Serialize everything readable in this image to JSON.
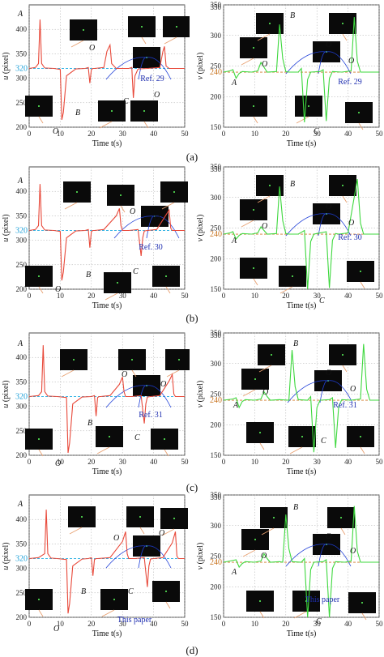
{
  "captions": [
    "(a)",
    "(b)",
    "(c)",
    "(d)"
  ],
  "colors": {
    "u_curve": "#e8493a",
    "v_curve": "#3ed83e",
    "u_ref": "#1aa9e0",
    "v_ref": "#d07a2a",
    "arrow_blue": "#1f3fd8",
    "arrow_orange": "#e8a070",
    "text_blue": "#1f2fb0"
  },
  "chart_data": [
    {
      "type": "line",
      "panel": "a-left",
      "xlabel": "Time t(s)",
      "ylabel": "u (pixel)",
      "xlim": [
        0,
        50
      ],
      "ylim": [
        200,
        450
      ],
      "xticks": [
        0,
        10,
        20,
        30,
        40,
        50
      ],
      "yticks": [
        200,
        250,
        300,
        350,
        400
      ],
      "reference_value": 320,
      "reference_label": "320",
      "series_label": "Ref. 29",
      "annotations": [
        "A",
        "B",
        "C",
        "O",
        "O",
        "O"
      ],
      "series": [
        {
          "x": [
            0,
            2,
            3,
            3.5,
            4,
            5,
            8,
            10,
            10.5,
            11,
            12,
            15,
            18,
            19,
            19.5,
            20,
            20.5,
            21,
            24,
            25,
            26,
            26.5,
            28,
            32,
            33,
            33.5,
            34,
            35,
            38,
            42,
            43,
            43.5,
            44,
            45,
            48,
            50
          ],
          "y": [
            320,
            322,
            330,
            420,
            330,
            321,
            320,
            318,
            215,
            230,
            305,
            319,
            320,
            322,
            290,
            318,
            320,
            320,
            322,
            355,
            368,
            330,
            320,
            320,
            322,
            260,
            305,
            319,
            320,
            322,
            355,
            365,
            325,
            320,
            320,
            320
          ]
        }
      ]
    },
    {
      "type": "line",
      "panel": "a-right",
      "xlabel": "Time t(s)",
      "ylabel": "v (pixel)",
      "xlim": [
        0,
        50
      ],
      "ylim": [
        150,
        350
      ],
      "xticks": [
        0,
        10,
        20,
        30,
        40,
        50
      ],
      "yticks": [
        150,
        200,
        250,
        300,
        350
      ],
      "reference_value": 240,
      "reference_label": "240",
      "series_label": "Ref. 29",
      "annotations": [
        "A",
        "B",
        "C",
        "O",
        "O",
        "O"
      ],
      "series": [
        {
          "x": [
            0,
            2,
            3,
            4,
            5,
            6,
            9,
            11,
            12,
            13,
            14,
            17,
            18,
            19,
            20,
            21,
            24,
            25,
            26,
            27,
            28,
            31,
            32,
            33,
            34,
            35,
            38,
            41,
            42,
            43,
            44,
            47,
            50
          ],
          "y": [
            240,
            242,
            244,
            230,
            238,
            241,
            240,
            242,
            256,
            248,
            240,
            241,
            318,
            262,
            241,
            240,
            240,
            246,
            158,
            228,
            240,
            241,
            244,
            160,
            230,
            241,
            240,
            242,
            330,
            258,
            240,
            240,
            240
          ]
        }
      ]
    },
    {
      "type": "line",
      "panel": "b-left",
      "xlabel": "Time t(s)",
      "ylabel": "u (pixel)",
      "xlim": [
        0,
        50
      ],
      "ylim": [
        200,
        450
      ],
      "xticks": [
        0,
        10,
        20,
        30,
        40,
        50
      ],
      "yticks": [
        200,
        250,
        300,
        350,
        400
      ],
      "reference_value": 320,
      "reference_label": "320",
      "series_label": "Ref. 30",
      "annotations": [
        "A",
        "B",
        "C",
        "O",
        "O",
        "O"
      ],
      "series": [
        {
          "x": [
            0,
            2,
            3,
            3.5,
            4,
            5,
            8,
            10,
            10.5,
            11,
            12,
            15,
            18,
            19,
            19.5,
            20,
            20.5,
            21,
            24,
            28,
            29,
            29.5,
            30,
            32,
            35,
            36,
            36.5,
            37,
            38,
            41,
            44,
            45,
            45.5,
            46,
            48,
            50
          ],
          "y": [
            320,
            322,
            330,
            415,
            330,
            321,
            320,
            318,
            218,
            235,
            305,
            319,
            320,
            322,
            285,
            318,
            320,
            320,
            322,
            350,
            365,
            330,
            320,
            320,
            322,
            268,
            305,
            319,
            320,
            322,
            352,
            362,
            325,
            320,
            320,
            320
          ]
        }
      ]
    },
    {
      "type": "line",
      "panel": "b-right",
      "xlabel": "Time t(s)",
      "ylabel": "v (pixel)",
      "xlim": [
        0,
        50
      ],
      "ylim": [
        150,
        350
      ],
      "xticks": [
        0,
        10,
        20,
        30,
        40,
        50
      ],
      "yticks": [
        150,
        200,
        250,
        300,
        350
      ],
      "reference_value": 240,
      "reference_label": "240",
      "series_label": "Ref. 30",
      "annotations": [
        "A",
        "B",
        "C",
        "O",
        "O",
        "O"
      ],
      "series": [
        {
          "x": [
            0,
            2,
            3,
            4,
            5,
            6,
            9,
            11,
            12,
            13,
            14,
            17,
            18,
            19,
            20,
            21,
            24,
            26,
            27,
            28,
            29,
            30,
            33,
            34,
            35,
            36,
            37,
            40,
            43,
            44,
            45,
            46,
            48,
            50
          ],
          "y": [
            240,
            242,
            244,
            232,
            238,
            241,
            240,
            242,
            252,
            246,
            240,
            241,
            318,
            262,
            241,
            240,
            240,
            246,
            150,
            228,
            240,
            241,
            244,
            152,
            230,
            241,
            240,
            242,
            330,
            258,
            240,
            240,
            240,
            240
          ]
        }
      ]
    },
    {
      "type": "line",
      "panel": "c-left",
      "xlabel": "Time t(s)",
      "ylabel": "u (pixel)",
      "xlim": [
        0,
        50
      ],
      "ylim": [
        200,
        450
      ],
      "xticks": [
        0,
        10,
        20,
        30,
        40,
        50
      ],
      "yticks": [
        200,
        250,
        300,
        350,
        400
      ],
      "reference_value": 320,
      "reference_label": "320",
      "series_label": "Ref. 31",
      "annotations": [
        "A",
        "B",
        "C",
        "O",
        "O",
        "O"
      ],
      "series": [
        {
          "x": [
            0,
            3,
            4,
            4.5,
            5,
            6,
            9,
            12,
            12.5,
            13,
            14,
            17,
            20,
            21,
            21.5,
            22,
            22.5,
            23,
            26,
            29,
            30,
            30.5,
            31,
            33,
            36,
            37,
            37.5,
            38,
            39,
            42,
            45,
            46,
            46.5,
            47,
            49,
            50
          ],
          "y": [
            320,
            322,
            330,
            425,
            330,
            321,
            320,
            318,
            205,
            225,
            305,
            319,
            320,
            322,
            280,
            318,
            320,
            320,
            322,
            345,
            360,
            330,
            320,
            320,
            322,
            265,
            305,
            319,
            320,
            322,
            352,
            365,
            325,
            320,
            320,
            320
          ]
        }
      ]
    },
    {
      "type": "line",
      "panel": "c-right",
      "xlabel": "Time t(s)",
      "ylabel": "v (pixel)",
      "xlim": [
        0,
        50
      ],
      "ylim": [
        150,
        350
      ],
      "xticks": [
        0,
        10,
        20,
        30,
        40,
        50
      ],
      "yticks": [
        150,
        200,
        250,
        300,
        350
      ],
      "reference_value": 240,
      "reference_label": "240",
      "series_label": "Ref. 31",
      "annotations": [
        "A",
        "B",
        "C",
        "O",
        "O",
        "O"
      ],
      "series": [
        {
          "x": [
            0,
            3,
            4,
            5,
            6,
            7,
            10,
            12,
            13,
            14,
            15,
            18,
            21,
            22,
            23,
            24,
            27,
            28,
            29,
            30,
            31,
            34,
            35,
            36,
            37,
            38,
            41,
            44,
            45,
            46,
            47,
            49,
            50
          ],
          "y": [
            240,
            242,
            244,
            228,
            238,
            241,
            240,
            242,
            254,
            246,
            240,
            241,
            240,
            322,
            262,
            241,
            240,
            246,
            155,
            228,
            240,
            241,
            244,
            162,
            230,
            241,
            240,
            242,
            332,
            258,
            240,
            240,
            240
          ]
        }
      ]
    },
    {
      "type": "line",
      "panel": "d-left",
      "xlabel": "Time t(s)",
      "ylabel": "u (pixel)",
      "xlim": [
        0,
        50
      ],
      "ylim": [
        200,
        450
      ],
      "xticks": [
        0,
        10,
        20,
        30,
        40,
        50
      ],
      "yticks": [
        200,
        250,
        300,
        350,
        400
      ],
      "reference_value": 320,
      "reference_label": "320",
      "series_label": "This paper",
      "annotations": [
        "A",
        "B",
        "C",
        "O",
        "O",
        "O"
      ],
      "series": [
        {
          "x": [
            0,
            3,
            5,
            5.5,
            6,
            7,
            9,
            12,
            12.5,
            13,
            14,
            17,
            19,
            20,
            20.5,
            21,
            21.5,
            22,
            26,
            30,
            31,
            31.5,
            32,
            34,
            37,
            38,
            38.5,
            39,
            40,
            43,
            46,
            47,
            47.5,
            48,
            49,
            50
          ],
          "y": [
            320,
            322,
            330,
            420,
            330,
            321,
            320,
            318,
            208,
            228,
            305,
            319,
            320,
            322,
            285,
            318,
            320,
            320,
            322,
            355,
            375,
            330,
            320,
            320,
            322,
            262,
            305,
            319,
            320,
            322,
            352,
            375,
            325,
            320,
            320,
            320
          ]
        }
      ]
    },
    {
      "type": "line",
      "panel": "d-right",
      "xlabel": "Time t(s)",
      "ylabel": "v (pixel)",
      "xlim": [
        0,
        50
      ],
      "ylim": [
        150,
        350
      ],
      "xticks": [
        0,
        10,
        20,
        30,
        40,
        50
      ],
      "yticks": [
        150,
        200,
        250,
        300,
        350
      ],
      "reference_value": 240,
      "reference_label": "240",
      "series_label": "This paper",
      "annotations": [
        "A",
        "B",
        "C",
        "O",
        "O",
        "O"
      ],
      "series": [
        {
          "x": [
            0,
            2,
            4,
            5,
            6,
            7,
            10,
            12,
            13,
            14,
            15,
            18,
            19,
            20,
            21,
            22,
            25,
            26,
            27,
            28,
            29,
            32,
            33,
            34,
            35,
            36,
            39,
            41,
            42,
            43,
            44,
            47,
            50
          ],
          "y": [
            240,
            242,
            244,
            232,
            238,
            241,
            240,
            242,
            254,
            246,
            240,
            241,
            240,
            318,
            262,
            241,
            240,
            246,
            150,
            228,
            240,
            241,
            244,
            150,
            230,
            241,
            240,
            242,
            332,
            258,
            240,
            240,
            240
          ]
        }
      ]
    }
  ]
}
